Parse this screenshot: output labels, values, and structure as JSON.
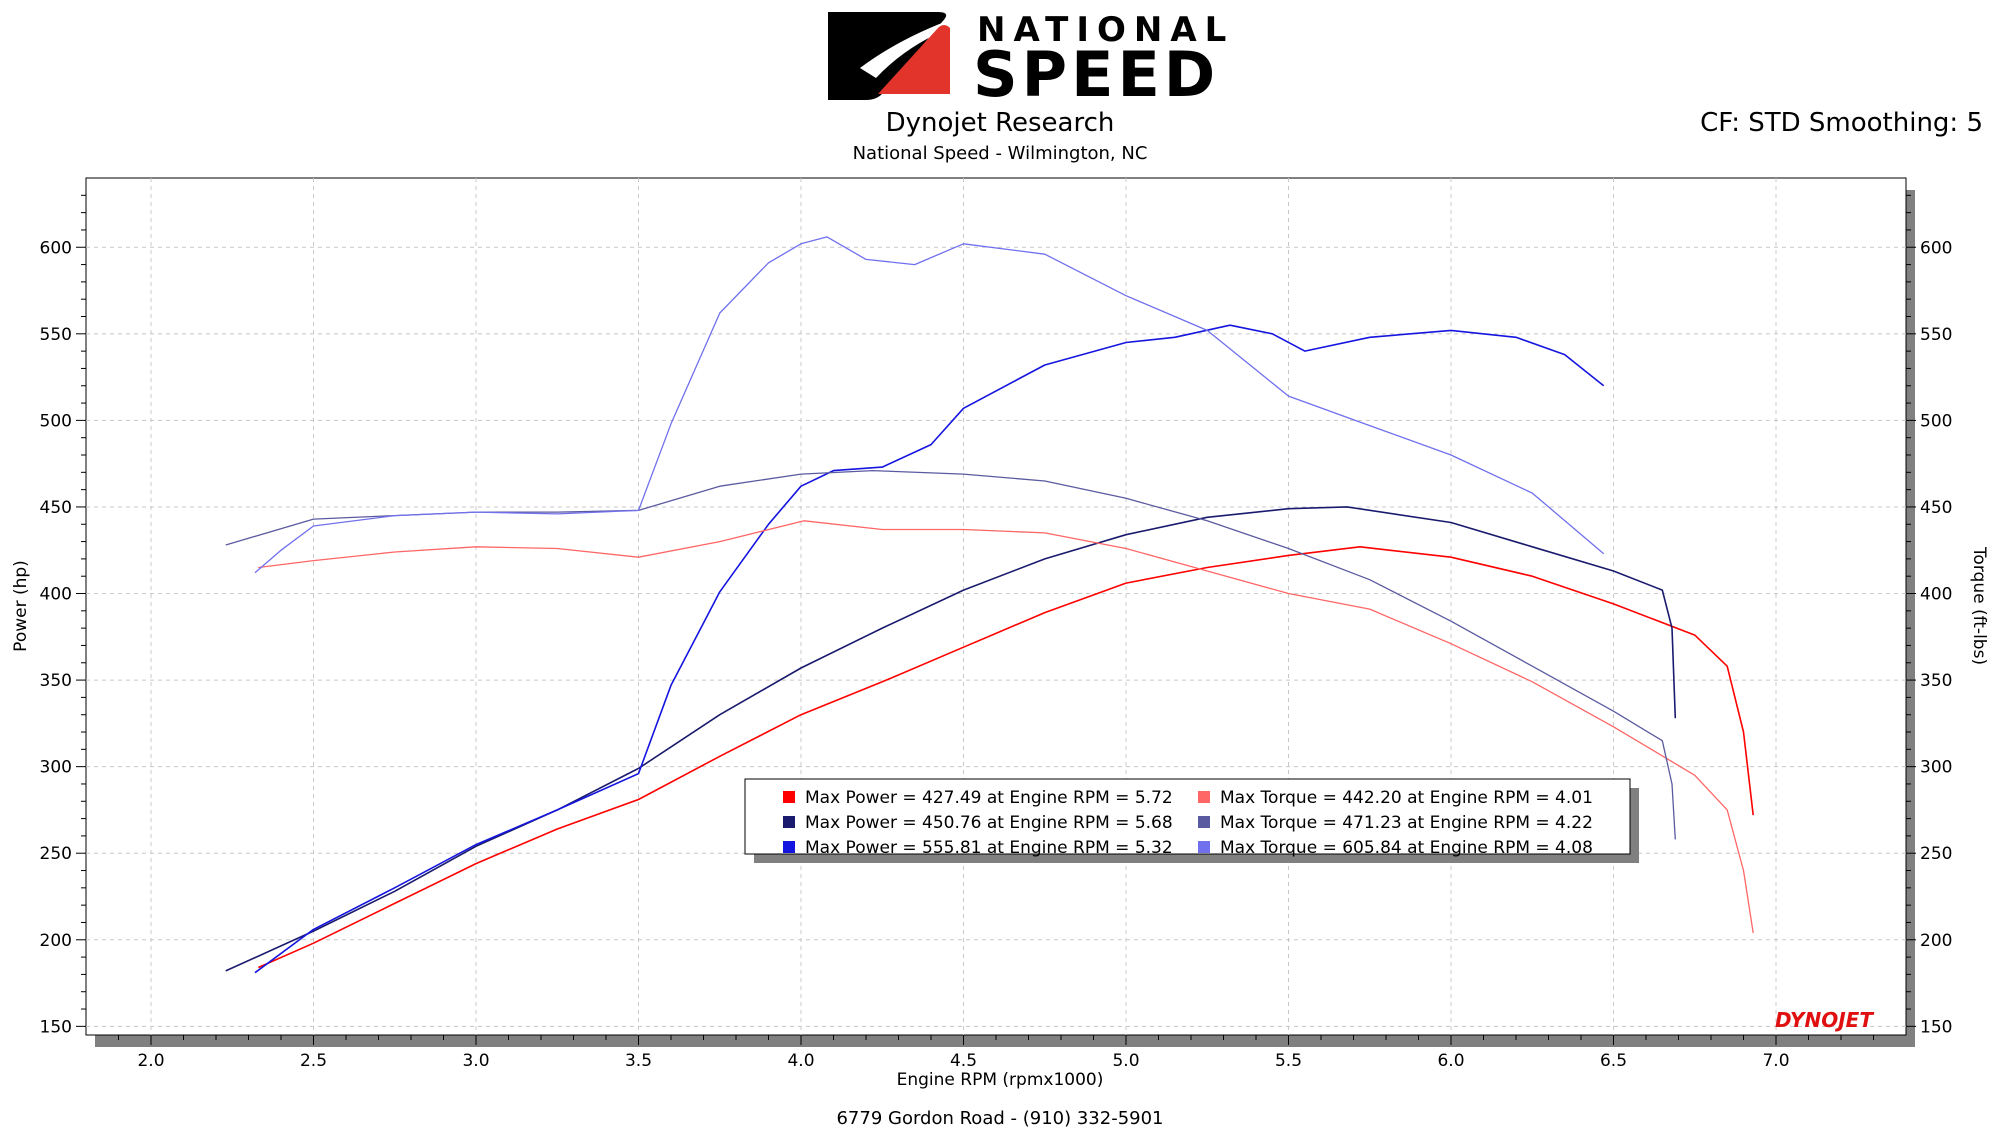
{
  "header": {
    "logo_line1": "NATIONAL",
    "logo_line2": "SPEED",
    "title": "Dynojet Research",
    "subtitle": "National Speed - Wilmington, NC",
    "cf": "CF: STD Smoothing: 5",
    "footer": "6779 Gordon Road - (910) 332-5901",
    "watermark": "DYNOJET"
  },
  "colors": {
    "red": "#ff0000",
    "red_light": "#ff6666",
    "navy": "#1a1a6e",
    "navy_light": "#5a5aa0",
    "blue": "#1515e0",
    "blue_light": "#7070ee"
  },
  "chart_data": {
    "type": "line",
    "xlabel": "Engine RPM (rpmx1000)",
    "ylabel": "Power (hp)",
    "y2label": "Torque (ft-lbs)",
    "xlim": [
      1.8,
      7.4
    ],
    "ylim": [
      145,
      640
    ],
    "x_ticks": [
      "2.0",
      "2.5",
      "3.0",
      "3.5",
      "4.0",
      "4.5",
      "5.0",
      "5.5",
      "6.0",
      "6.5",
      "7.0"
    ],
    "y_ticks": [
      "150",
      "200",
      "250",
      "300",
      "350",
      "400",
      "450",
      "500",
      "550",
      "600"
    ],
    "grid": true,
    "legend_position": "lower-center",
    "series": [
      {
        "name": "Max Power = 427.49 at Engine RPM = 5.72",
        "kind": "power",
        "color_key": "red",
        "x": [
          2.33,
          2.5,
          2.75,
          3.0,
          3.25,
          3.5,
          3.75,
          4.0,
          4.25,
          4.5,
          4.75,
          5.0,
          5.25,
          5.5,
          5.72,
          6.0,
          6.25,
          6.5,
          6.75,
          6.85,
          6.9,
          6.93
        ],
        "values": [
          184,
          198,
          221,
          244,
          264,
          281,
          306,
          330,
          349,
          369,
          389,
          406,
          415,
          422,
          427,
          421,
          410,
          394,
          376,
          358,
          320,
          272
        ]
      },
      {
        "name": "Max Power = 450.76 at Engine RPM = 5.68",
        "kind": "power",
        "color_key": "navy",
        "x": [
          2.23,
          2.5,
          2.75,
          3.0,
          3.25,
          3.5,
          3.75,
          4.0,
          4.25,
          4.5,
          4.75,
          5.0,
          5.25,
          5.5,
          5.68,
          6.0,
          6.25,
          6.5,
          6.65,
          6.68,
          6.69
        ],
        "values": [
          182,
          205,
          228,
          254,
          275,
          299,
          330,
          357,
          380,
          402,
          420,
          434,
          444,
          449,
          450,
          441,
          427,
          413,
          402,
          380,
          328
        ]
      },
      {
        "name": "Max Power = 555.81 at Engine RPM = 5.32",
        "kind": "power",
        "color_key": "blue",
        "x": [
          2.32,
          2.5,
          2.75,
          3.0,
          3.25,
          3.5,
          3.6,
          3.75,
          3.9,
          4.0,
          4.1,
          4.25,
          4.4,
          4.5,
          4.75,
          5.0,
          5.15,
          5.32,
          5.45,
          5.55,
          5.75,
          6.0,
          6.2,
          6.35,
          6.47
        ],
        "values": [
          181,
          206,
          230,
          255,
          275,
          296,
          347,
          401,
          440,
          462,
          471,
          473,
          486,
          507,
          532,
          545,
          548,
          555,
          550,
          540,
          548,
          552,
          548,
          538,
          520
        ]
      },
      {
        "name": "Max Torque = 442.20 at Engine RPM = 4.01",
        "kind": "torque",
        "color_key": "red_light",
        "x": [
          2.33,
          2.5,
          2.75,
          3.0,
          3.25,
          3.5,
          3.75,
          4.01,
          4.25,
          4.5,
          4.75,
          5.0,
          5.25,
          5.5,
          5.75,
          6.0,
          6.25,
          6.5,
          6.75,
          6.85,
          6.9,
          6.93
        ],
        "values": [
          415,
          419,
          424,
          427,
          426,
          421,
          430,
          442,
          437,
          437,
          435,
          426,
          413,
          400,
          391,
          371,
          349,
          323,
          295,
          275,
          240,
          204
        ]
      },
      {
        "name": "Max Torque = 471.23 at Engine RPM = 4.22",
        "kind": "torque",
        "color_key": "navy_light",
        "x": [
          2.23,
          2.5,
          2.75,
          3.0,
          3.25,
          3.5,
          3.75,
          4.0,
          4.22,
          4.5,
          4.75,
          5.0,
          5.25,
          5.5,
          5.75,
          6.0,
          6.25,
          6.5,
          6.65,
          6.68,
          6.69
        ],
        "values": [
          428,
          443,
          445,
          447,
          447,
          448,
          462,
          469,
          471,
          469,
          465,
          455,
          442,
          426,
          408,
          384,
          358,
          332,
          315,
          290,
          258
        ]
      },
      {
        "name": "Max Torque = 605.84 at Engine RPM = 4.08",
        "kind": "torque",
        "color_key": "blue_light",
        "x": [
          2.32,
          2.4,
          2.5,
          2.75,
          3.0,
          3.25,
          3.5,
          3.6,
          3.75,
          3.9,
          4.0,
          4.08,
          4.2,
          4.35,
          4.5,
          4.75,
          5.0,
          5.15,
          5.25,
          5.5,
          5.75,
          6.0,
          6.25,
          6.47
        ],
        "values": [
          412,
          425,
          439,
          445,
          447,
          446,
          448,
          498,
          562,
          591,
          602,
          606,
          593,
          590,
          602,
          596,
          572,
          560,
          552,
          514,
          497,
          480,
          458,
          423
        ]
      }
    ]
  }
}
